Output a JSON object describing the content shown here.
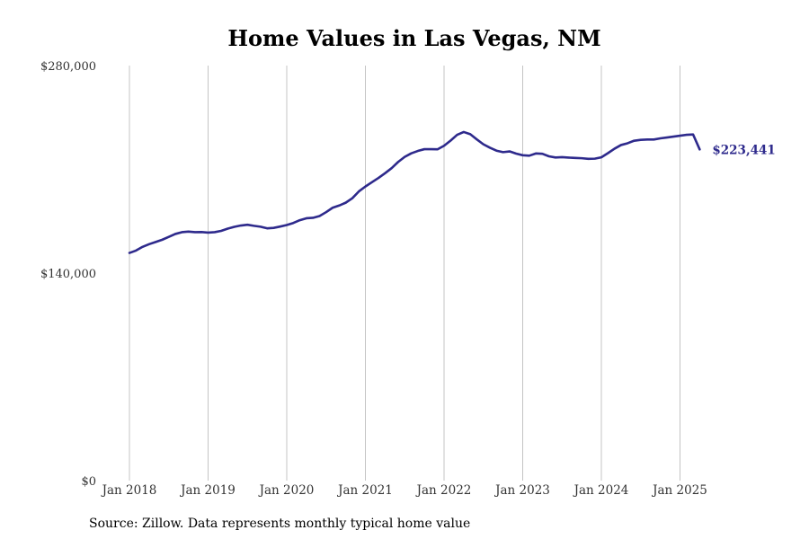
{
  "chart_data": {
    "type": "line",
    "title": "Home Values in Las Vegas, NM",
    "source": "Source: Zillow. Data represents monthly typical home value",
    "xlabel": "",
    "ylabel": "",
    "ylim": [
      0,
      280000
    ],
    "y_ticks": [
      {
        "value": 0,
        "label": "$0"
      },
      {
        "value": 140000,
        "label": "$140,000"
      },
      {
        "value": 280000,
        "label": "$280,000"
      }
    ],
    "x_ticks": [
      {
        "date": "2018-01",
        "label": "Jan 2018"
      },
      {
        "date": "2019-01",
        "label": "Jan 2019"
      },
      {
        "date": "2020-01",
        "label": "Jan 2020"
      },
      {
        "date": "2021-01",
        "label": "Jan 2021"
      },
      {
        "date": "2022-01",
        "label": "Jan 2022"
      },
      {
        "date": "2023-01",
        "label": "Jan 2023"
      },
      {
        "date": "2024-01",
        "label": "Jan 2024"
      },
      {
        "date": "2025-01",
        "label": "Jan 2025"
      }
    ],
    "grid": "vertical",
    "line_color": "#2e2a8c",
    "end_label": "$223,441",
    "series": [
      {
        "name": "",
        "x": [
          "2018-01",
          "2018-02",
          "2018-03",
          "2018-04",
          "2018-05",
          "2018-06",
          "2018-07",
          "2018-08",
          "2018-09",
          "2018-10",
          "2018-11",
          "2018-12",
          "2019-01",
          "2019-02",
          "2019-03",
          "2019-04",
          "2019-05",
          "2019-06",
          "2019-07",
          "2019-08",
          "2019-09",
          "2019-10",
          "2019-11",
          "2019-12",
          "2020-01",
          "2020-02",
          "2020-03",
          "2020-04",
          "2020-05",
          "2020-06",
          "2020-07",
          "2020-08",
          "2020-09",
          "2020-10",
          "2020-11",
          "2020-12",
          "2021-01",
          "2021-02",
          "2021-03",
          "2021-04",
          "2021-05",
          "2021-06",
          "2021-07",
          "2021-08",
          "2021-09",
          "2021-10",
          "2021-11",
          "2021-12",
          "2022-01",
          "2022-02",
          "2022-03",
          "2022-04",
          "2022-05",
          "2022-06",
          "2022-07",
          "2022-08",
          "2022-09",
          "2022-10",
          "2022-11",
          "2022-12",
          "2023-01",
          "2023-02",
          "2023-03",
          "2023-04",
          "2023-05",
          "2023-06",
          "2023-07",
          "2023-08",
          "2023-09",
          "2023-10",
          "2023-11",
          "2023-12",
          "2024-01",
          "2024-02",
          "2024-03",
          "2024-04",
          "2024-05",
          "2024-06",
          "2024-07",
          "2024-08",
          "2024-09",
          "2024-10",
          "2024-11",
          "2024-12",
          "2025-01",
          "2025-02",
          "2025-03",
          "2025-04"
        ],
        "values": [
          153600,
          155200,
          157700,
          159500,
          161000,
          162500,
          164400,
          166400,
          167600,
          168000,
          167600,
          167700,
          167300,
          167600,
          168500,
          170000,
          171200,
          172100,
          172600,
          171900,
          171300,
          170200,
          170500,
          171400,
          172400,
          173800,
          175700,
          177000,
          177300,
          178500,
          181100,
          184100,
          185600,
          187500,
          190500,
          195100,
          198400,
          201300,
          204200,
          207400,
          210800,
          215000,
          218400,
          220800,
          222400,
          223600,
          223600,
          223500,
          225900,
          229400,
          233300,
          235200,
          233700,
          230200,
          226900,
          224600,
          222600,
          221600,
          222100,
          220600,
          219500,
          219200,
          220700,
          220500,
          218800,
          218000,
          218200,
          217900,
          217700,
          217500,
          217100,
          217200,
          218100,
          220900,
          223900,
          226400,
          227600,
          229300,
          229900,
          230100,
          230100,
          230900,
          231500,
          232100,
          232700,
          233300,
          233500,
          223441
        ]
      }
    ]
  }
}
